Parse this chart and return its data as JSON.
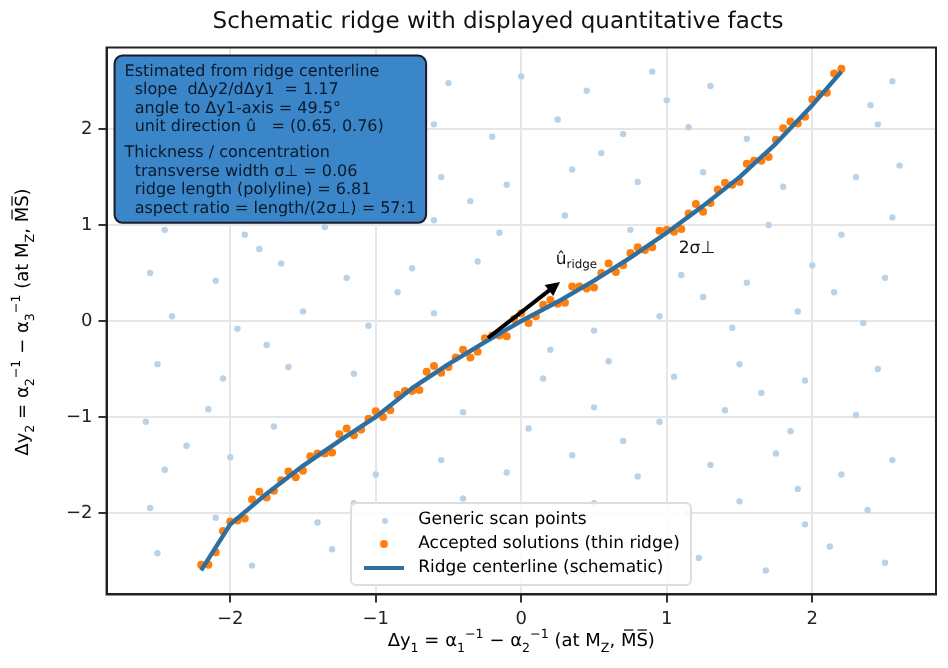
{
  "chart_data": {
    "type": "scatter",
    "title": "Schematic ridge with displayed quantitative facts",
    "xlabel": "Δy$_{1}$ = α$_{1}$$^{−1}$ − α$_{2}$$^{−1}$  (at M$_{Z}$, M̅S̅)",
    "ylabel": "Δy$_{2}$ = α$_{2}$$^{−1}$ − α$_{3}$$^{−1}$  (at M$_{Z}$, M̅S̅)",
    "xlim": [
      -2.85,
      2.85
    ],
    "ylim": [
      -2.85,
      2.85
    ],
    "xticks": [
      -2,
      -1,
      0,
      1,
      2
    ],
    "yticks": [
      -2,
      -1,
      0,
      1,
      2
    ],
    "grid": true,
    "legend": "bottom",
    "marker": "circle",
    "annotations": [
      "Estimated from ridge centerline\n  slope  dΔy2/dΔy1  = 1.17\n  angle to Δy1-axis = 49.5°\n  unit direction û   = (0.65, 0.76)",
      "Thickness / concentration\n  transverse width σ⊥ = 0.06\n  ridge length (polyline) = 6.81\n  aspect ratio = length/(2σ⊥) = 57:1",
      {
        "text": "û$_{ridge}$",
        "x": 0.32,
        "y": 0.45
      },
      {
        "text": "2σ⊥",
        "x": 1.0,
        "y": 0.92
      }
    ],
    "series": [
      {
        "name": "Generic scan points",
        "color": "#b9d2e8",
        "x": [
          -2.5,
          -1.85,
          -1.3,
          1.22,
          1.68,
          2.12,
          2.5,
          -2.55,
          -2.1,
          -1.4,
          -1.15,
          1.15,
          1.5,
          1.95,
          2.38,
          -0.4,
          0.5,
          -2.45,
          -2.0,
          -1.0,
          -0.55,
          -0.1,
          0.35,
          0.8,
          1.3,
          1.75,
          2.2,
          2.55,
          -2.58,
          -2.15,
          -1.7,
          -0.4,
          0.05,
          0.5,
          0.95,
          1.4,
          1.85,
          2.3,
          -2.5,
          -2.05,
          -1.6,
          -1.15,
          0.15,
          0.6,
          1.05,
          1.5,
          1.95,
          2.45,
          -2.4,
          -1.95,
          -1.5,
          -1.05,
          -0.6,
          0.5,
          0.95,
          1.45,
          1.9,
          2.35,
          -2.55,
          -2.1,
          -1.65,
          -1.2,
          -0.75,
          -0.3,
          1.1,
          1.55,
          2.0,
          2.5,
          -2.45,
          -1.9,
          -1.35,
          -0.6,
          -0.15,
          0.3,
          0.75,
          1.7,
          2.2,
          2.55,
          -0.55,
          -0.1,
          0.35,
          0.8,
          1.25,
          1.8,
          2.3,
          2.6,
          -0.6,
          -0.2,
          0.25,
          0.7,
          1.15,
          1.55,
          2.45,
          -0.5,
          0.0,
          0.45,
          0.9,
          1.3,
          2.55,
          -1.75,
          -0.85,
          0.2,
          1.25,
          2.15,
          -2.3,
          0.7,
          1.65,
          -0.35,
          0.55,
          1.9,
          -1.8,
          2.4,
          1.0
        ],
        "values": [
          -2.42,
          -2.55,
          -2.38,
          -2.47,
          -2.6,
          -2.35,
          -2.52,
          -1.95,
          -2.05,
          -2.1,
          -1.9,
          -2.0,
          -1.88,
          -2.12,
          -1.97,
          -1.85,
          -1.9,
          -1.55,
          -1.42,
          -1.6,
          -1.45,
          -1.58,
          -1.4,
          -1.62,
          -1.5,
          -1.38,
          -1.6,
          -1.45,
          -1.05,
          -0.92,
          -1.1,
          -0.95,
          -1.12,
          -0.9,
          -1.05,
          -0.93,
          -1.15,
          -0.98,
          -0.45,
          -0.6,
          -0.48,
          -0.55,
          -0.6,
          -0.42,
          -0.58,
          -0.45,
          -0.62,
          -0.5,
          0.05,
          -0.08,
          0.1,
          -0.05,
          0.08,
          -0.1,
          0.05,
          -0.07,
          0.1,
          -0.02,
          0.5,
          0.42,
          0.6,
          0.45,
          0.55,
          0.62,
          0.48,
          0.4,
          0.58,
          0.45,
          0.95,
          0.9,
          0.98,
          1.05,
          0.92,
          1.1,
          0.95,
          1.0,
          0.9,
          1.08,
          1.5,
          1.42,
          1.58,
          1.45,
          1.55,
          1.4,
          1.5,
          1.62,
          2.05,
          1.92,
          2.1,
          1.95,
          2.02,
          1.9,
          2.05,
          2.48,
          2.55,
          2.4,
          2.6,
          2.45,
          2.5,
          -0.25,
          0.3,
          -0.3,
          0.25,
          0.3,
          -1.3,
          -1.25,
          -0.75,
          1.25,
          1.75,
          -1.75,
          0.75,
          2.25,
          2.3
        ]
      },
      {
        "name": "Accepted solutions (thin ridge)",
        "color": "#ff7f0e",
        "x": [
          -2.2,
          -2.1,
          -2.0,
          -1.9,
          -1.8,
          -1.7,
          -1.6,
          -1.5,
          -1.4,
          -1.3,
          -1.2,
          -1.1,
          -1.0,
          -0.9,
          -0.8,
          -0.7,
          -0.6,
          -0.5,
          -0.4,
          -0.3,
          -0.2,
          -0.1,
          0,
          0.1,
          0.2,
          0.3,
          0.4,
          0.5,
          0.6,
          0.7,
          0.8,
          0.9,
          1.0,
          1.1,
          1.2,
          1.3,
          1.4,
          1.5,
          1.6,
          1.7,
          1.8,
          1.9,
          2.0,
          2.1,
          2.2,
          -2.15,
          -2.05,
          -1.95,
          -1.85,
          -1.75,
          -1.65,
          -1.55,
          -1.45,
          -1.35,
          -1.25,
          -1.15,
          -1.05,
          -0.95,
          -0.85,
          -0.75,
          -0.65,
          -0.55,
          -0.45,
          -0.35,
          -0.25,
          -0.15,
          -0.05,
          0.05,
          0.15,
          0.25,
          0.35,
          0.45,
          0.55,
          0.65,
          0.75,
          0.85,
          0.95,
          1.05,
          1.15,
          1.25,
          1.35,
          1.45,
          1.55,
          1.65,
          1.75,
          1.85,
          1.95,
          2.05,
          2.15
        ],
        "values": [
          -2.54,
          -2.41,
          -2.09,
          -2.06,
          -1.78,
          -1.77,
          -1.57,
          -1.56,
          -1.38,
          -1.37,
          -1.12,
          -1.13,
          -0.94,
          -0.93,
          -0.73,
          -0.72,
          -0.47,
          -0.48,
          -0.3,
          -0.32,
          -0.15,
          -0.16,
          0.08,
          0.05,
          0.22,
          0.19,
          0.36,
          0.35,
          0.6,
          0.58,
          0.77,
          0.77,
          0.95,
          0.96,
          1.22,
          1.23,
          1.44,
          1.45,
          1.67,
          1.71,
          2.01,
          2.06,
          2.31,
          2.38,
          2.63,
          -2.54,
          -2.19,
          -2.08,
          -1.86,
          -1.84,
          -1.66,
          -1.63,
          -1.41,
          -1.38,
          -1.18,
          -1.19,
          -1.02,
          -1.0,
          -0.77,
          -0.73,
          -0.53,
          -0.54,
          -0.38,
          -0.38,
          -0.18,
          -0.15,
          0.02,
          -0.02,
          0.17,
          0.18,
          0.36,
          0.34,
          0.5,
          0.51,
          0.71,
          0.74,
          0.94,
          0.93,
          1.12,
          1.14,
          1.37,
          1.42,
          1.64,
          1.67,
          1.89,
          2.08,
          2.13,
          2.37,
          2.58
        ]
      },
      {
        "name": "Ridge centerline (schematic)",
        "type": "line",
        "color": "#2f6f9f",
        "marker": "none",
        "x": [
          -2.2,
          -2.0,
          -1.75,
          -1.5,
          -1.25,
          -1.0,
          -0.75,
          -0.5,
          -0.25,
          0,
          0.25,
          0.5,
          0.75,
          1.0,
          1.25,
          1.5,
          1.75,
          2.0,
          2.2
        ],
        "values": [
          -2.6,
          -2.12,
          -1.8,
          -1.51,
          -1.25,
          -1.0,
          -0.7,
          -0.45,
          -0.22,
          0,
          0.2,
          0.42,
          0.66,
          0.92,
          1.2,
          1.5,
          1.85,
          2.25,
          2.6
        ]
      }
    ]
  }
}
